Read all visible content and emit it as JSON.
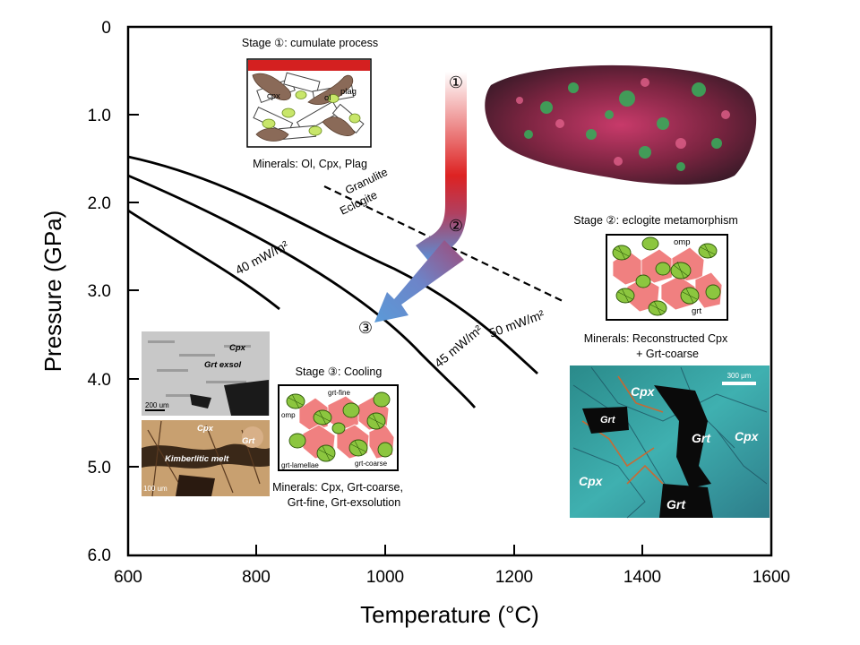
{
  "axes": {
    "x_title": "Temperature (°C)",
    "y_title": "Pressure (GPa)",
    "x_ticks": [
      "600",
      "800",
      "1000",
      "1200",
      "1400",
      "1600"
    ],
    "y_ticks": [
      "0",
      "1.0",
      "2.0",
      "3.0",
      "4.0",
      "5.0",
      "6.0"
    ]
  },
  "geotherms": {
    "g40": "40 mW/m²",
    "g45": "45 mW/m²",
    "g50": "50 mW/m²"
  },
  "boundary": {
    "upper": "Granulite",
    "lower": "Eclogite"
  },
  "path_markers": {
    "m1": "①",
    "m2": "②",
    "m3": "③"
  },
  "stage1": {
    "title": "Stage ①: cumulate process",
    "minerals": "Minerals: Ol, Cpx, Plag",
    "labels": {
      "cpx": "cpx",
      "ol": "ol",
      "plag": "plag"
    }
  },
  "stage2": {
    "title": "Stage ②: eclogite metamorphism",
    "minerals_line1": "Minerals: Reconstructed Cpx",
    "minerals_line2": "+ Grt-coarse",
    "labels": {
      "omp": "omp",
      "grt": "grt"
    }
  },
  "stage3": {
    "title": "Stage ③: Cooling",
    "minerals_line1": "Minerals: Cpx, Grt-coarse,",
    "minerals_line2": "Grt-fine, Grt-exsolution",
    "labels": {
      "grt_fine": "grt-fine",
      "omp": "omp",
      "grt_lamellae": "grt-lamellae",
      "grt_coarse": "grt-coarse"
    }
  },
  "photo_bse": {
    "cpx": "Cpx",
    "grt_exsol": "Grt exsol",
    "scale": "200 um"
  },
  "photo_thin": {
    "cpx": "Cpx",
    "grt": "Grt",
    "melt": "Kimberlitic melt",
    "scale": "100 um"
  },
  "photo_micro": {
    "cpx1": "Cpx",
    "cpx2": "Cpx",
    "cpx3": "Cpx",
    "grt1": "Grt",
    "grt2": "Grt",
    "grt3": "Grt",
    "scale": "300 μm"
  },
  "colors": {
    "path_start": "#ffffff",
    "path_mid": "#dd2222",
    "path_end": "#5b8fd6",
    "garnet": "#f08080",
    "cpx": "#8cc63f"
  }
}
